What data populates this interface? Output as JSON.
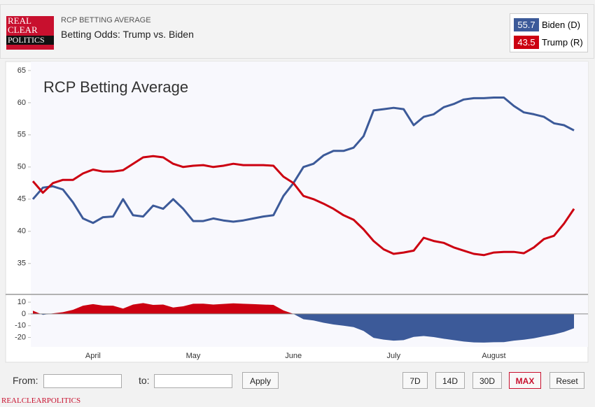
{
  "header": {
    "kicker": "RCP BETTING AVERAGE",
    "title": "Betting Odds: Trump vs. Biden",
    "logo": [
      "REAL",
      "CLEAR",
      "POLITICS"
    ]
  },
  "chart_data": [
    {
      "type": "line",
      "annotation": "RCP Betting Average",
      "series": [
        {
          "name": "Biden (D)",
          "color": "#3c5a99",
          "values": [
            45,
            46.8,
            47,
            46.5,
            44.5,
            42,
            41.3,
            42.2,
            42.3,
            45,
            42.5,
            42.3,
            44,
            43.5,
            45,
            43.5,
            41.6,
            41.6,
            42,
            41.7,
            41.5,
            41.7,
            42,
            42.3,
            42.5,
            45.5,
            47.5,
            50,
            50.5,
            51.8,
            52.5,
            52.5,
            53,
            54.8,
            58.8,
            59,
            59.2,
            59,
            56.5,
            57.8,
            58.2,
            59.3,
            59.8,
            60.5,
            60.7,
            60.7,
            60.8,
            60.8,
            59.5,
            58.5,
            58.2,
            57.8,
            56.8,
            56.5,
            55.7
          ]
        },
        {
          "name": "Trump (R)",
          "color": "#cc0011",
          "values": [
            47.8,
            46,
            47.5,
            48,
            48,
            49,
            49.6,
            49.3,
            49.3,
            49.5,
            50.5,
            51.5,
            51.7,
            51.5,
            50.5,
            50,
            50.2,
            50.3,
            50,
            50.2,
            50.5,
            50.3,
            50.3,
            50.3,
            50.2,
            48.5,
            47.5,
            45.5,
            45,
            44.3,
            43.5,
            42.5,
            41.8,
            40.3,
            38.5,
            37.2,
            36.5,
            36.7,
            37,
            39,
            38.5,
            38.2,
            37.5,
            37,
            36.5,
            36.3,
            36.7,
            36.8,
            36.8,
            36.6,
            37.5,
            38.8,
            39.3,
            41.2,
            43.5
          ]
        }
      ],
      "ylim": [
        30.3,
        66.4
      ],
      "yticks": [
        35,
        40,
        45,
        50,
        55,
        60,
        65
      ]
    },
    {
      "type": "area",
      "categories": [
        null,
        null,
        null,
        null,
        null,
        null,
        "April",
        null,
        null,
        null,
        null,
        null,
        null,
        null,
        null,
        null,
        "May",
        null,
        null,
        null,
        null,
        null,
        null,
        null,
        null,
        null,
        "June",
        null,
        null,
        null,
        null,
        null,
        null,
        null,
        null,
        null,
        "July",
        null,
        null,
        null,
        null,
        null,
        null,
        null,
        null,
        null,
        "August",
        null,
        null,
        null,
        null,
        null,
        null,
        null,
        null
      ],
      "values": [
        2.8,
        -0.8,
        0.5,
        1.5,
        3.5,
        7,
        8.3,
        7.1,
        7,
        4.5,
        8,
        9.2,
        7.7,
        8,
        5.5,
        6.5,
        8.6,
        8.7,
        8,
        8.5,
        9,
        8.6,
        8.3,
        8,
        7.7,
        3,
        0,
        -4.5,
        -5.5,
        -7.5,
        -9,
        -10,
        -11.2,
        -14.5,
        -20.3,
        -21.8,
        -22.7,
        -22.3,
        -19.5,
        -18.8,
        -19.7,
        -21.1,
        -22.3,
        -23.5,
        -24.2,
        -24.4,
        -24.1,
        -24,
        -22.7,
        -21.9,
        -20.7,
        -19,
        -17.5,
        -15.3,
        -12.2
      ],
      "colors": {
        "positive": "#cc0011",
        "negative": "#3c5a99"
      },
      "ylim": [
        -28,
        16
      ],
      "yticks": [
        10,
        0,
        -10,
        -20
      ]
    }
  ],
  "controls": {
    "from": "From:",
    "to": "to:",
    "apply": "Apply",
    "ranges": [
      "7D",
      "14D",
      "30D",
      "MAX",
      "Reset"
    ],
    "active": 3
  },
  "footer": "REALCLEARPOLITICS"
}
